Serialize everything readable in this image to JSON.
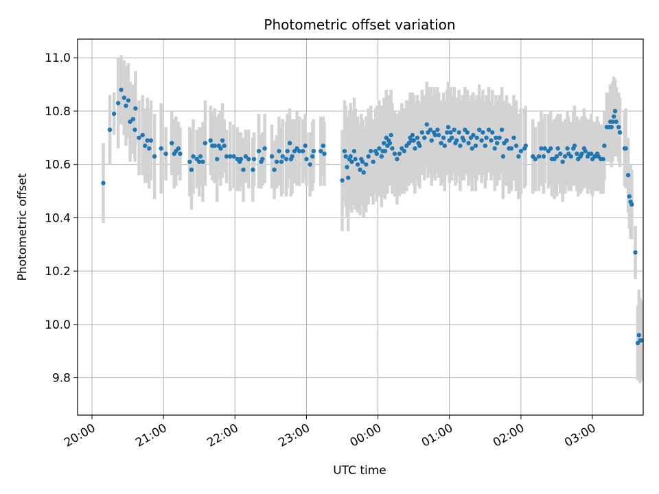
{
  "chart_data": {
    "type": "scatter",
    "title": "Photometric offset variation",
    "xlabel": "UTC time",
    "ylabel": "Photometric offset",
    "x_ticks": [
      "20:00",
      "21:00",
      "22:00",
      "23:00",
      "00:00",
      "01:00",
      "02:00",
      "03:00"
    ],
    "y_ticks": [
      "9.8",
      "10.0",
      "10.2",
      "10.4",
      "10.6",
      "10.8",
      "11.0"
    ],
    "xlim": [
      "19:52",
      "03:52"
    ],
    "ylim": [
      9.66,
      11.07
    ],
    "grid": true,
    "legend": "none",
    "colors": {
      "marker": "#1f77b4",
      "errorbar": "#d3d3d3",
      "grid": "#b0b0b0"
    },
    "series": [
      {
        "x_unit": "minutes after 20:00 UTC",
        "points": [
          [
            9.5,
            10.53,
            0.15
          ],
          [
            15,
            10.73,
            0.13
          ],
          [
            18.5,
            10.79,
            0.08
          ],
          [
            22,
            10.83,
            0.17
          ],
          [
            24.5,
            10.88,
            0.13
          ],
          [
            27,
            10.85,
            0.14
          ],
          [
            28.5,
            10.82,
            0.15
          ],
          [
            30.5,
            10.84,
            0.14
          ],
          [
            32,
            10.76,
            0.15
          ],
          [
            34.5,
            10.77,
            0.13
          ],
          [
            36.5,
            10.81,
            0.14
          ],
          [
            36,
            10.73,
            0.12
          ],
          [
            39.5,
            10.7,
            0.14
          ],
          [
            42.5,
            10.71,
            0.15
          ],
          [
            44.5,
            10.67,
            0.14
          ],
          [
            46.5,
            10.69,
            0.16
          ],
          [
            48,
            10.66,
            0.15
          ],
          [
            49.5,
            10.69,
            0.15
          ],
          [
            52.5,
            10.63,
            0.16
          ],
          [
            58,
            10.66,
            0.17
          ],
          [
            62,
            10.64,
            0.1
          ],
          [
            67,
            10.68,
            0.12
          ],
          [
            69,
            10.64,
            0.13
          ],
          [
            70.5,
            10.65,
            0.13
          ],
          [
            72.5,
            10.66,
            0.1
          ],
          [
            74,
            10.64,
            0.1
          ],
          [
            82,
            10.61,
            0.13
          ],
          [
            83.5,
            10.58,
            0.15
          ],
          [
            85,
            10.63,
            0.14
          ],
          [
            88,
            10.62,
            0.11
          ],
          [
            90,
            10.61,
            0.13
          ],
          [
            91,
            10.63,
            0.11
          ],
          [
            93,
            10.61,
            0.15
          ],
          [
            95,
            10.68,
            0.16
          ],
          [
            99.5,
            10.69,
            0.13
          ],
          [
            101,
            10.67,
            0.13
          ],
          [
            103,
            10.67,
            0.14
          ],
          [
            105,
            10.62,
            0.16
          ],
          [
            106.5,
            10.67,
            0.12
          ],
          [
            108,
            10.66,
            0.14
          ],
          [
            109.5,
            10.69,
            0.14
          ],
          [
            111,
            10.67,
            0.1
          ],
          [
            113,
            10.63,
            0.1
          ],
          [
            116,
            10.63,
            0.13
          ],
          [
            119,
            10.63,
            0.12
          ],
          [
            122,
            10.62,
            0.12
          ],
          [
            124,
            10.61,
            0.11
          ],
          [
            125,
            10.62,
            0.1
          ],
          [
            127,
            10.58,
            0.12
          ],
          [
            129,
            10.63,
            0.1
          ],
          [
            131.5,
            10.62,
            0.11
          ],
          [
            135,
            10.58,
            0.12
          ],
          [
            136,
            10.62,
            0.1
          ],
          [
            140,
            10.65,
            0.14
          ],
          [
            142,
            10.61,
            0.1
          ],
          [
            143,
            10.62,
            0.1
          ],
          [
            145,
            10.66,
            0.13
          ],
          [
            151,
            10.63,
            0.12
          ],
          [
            153,
            10.58,
            0.11
          ],
          [
            155,
            10.61,
            0.1
          ],
          [
            157,
            10.65,
            0.13
          ],
          [
            159,
            10.61,
            0.13
          ],
          [
            160,
            10.63,
            0.14
          ],
          [
            163,
            10.62,
            0.14
          ],
          [
            164,
            10.65,
            0.14
          ],
          [
            166,
            10.68,
            0.13
          ],
          [
            167,
            10.62,
            0.14
          ],
          [
            168,
            10.63,
            0.14
          ],
          [
            170,
            10.65,
            0.12
          ],
          [
            172,
            10.66,
            0.14
          ],
          [
            174,
            10.65,
            0.13
          ],
          [
            177,
            10.65,
            0.12
          ],
          [
            179,
            10.67,
            0.12
          ],
          [
            180,
            10.62,
            0.1
          ],
          [
            183,
            10.6,
            0.12
          ],
          [
            185,
            10.63,
            0.13
          ],
          [
            186,
            10.65,
            0.12
          ],
          [
            192,
            10.65,
            0.13
          ],
          [
            194,
            10.67,
            0.11
          ],
          [
            195,
            10.64,
            0.12
          ],
          [
            210,
            10.54,
            0.19
          ],
          [
            212,
            10.65,
            0.19
          ],
          [
            213,
            10.63,
            0.19
          ],
          [
            214,
            10.59,
            0.19
          ],
          [
            215,
            10.55,
            0.2
          ],
          [
            216,
            10.62,
            0.18
          ],
          [
            217,
            10.63,
            0.2
          ],
          [
            218,
            10.61,
            0.19
          ],
          [
            220,
            10.65,
            0.2
          ],
          [
            221,
            10.62,
            0.19
          ],
          [
            223,
            10.6,
            0.18
          ],
          [
            225,
            10.58,
            0.17
          ],
          [
            226,
            10.62,
            0.17
          ],
          [
            227,
            10.61,
            0.16
          ],
          [
            228,
            10.57,
            0.17
          ],
          [
            230,
            10.6,
            0.18
          ],
          [
            232,
            10.63,
            0.18
          ],
          [
            234,
            10.65,
            0.17
          ],
          [
            236,
            10.61,
            0.16
          ],
          [
            238,
            10.65,
            0.16
          ],
          [
            239,
            10.64,
            0.18
          ],
          [
            241,
            10.66,
            0.18
          ],
          [
            243,
            10.63,
            0.19
          ],
          [
            244,
            10.65,
            0.17
          ],
          [
            245,
            10.68,
            0.17
          ],
          [
            246,
            10.65,
            0.18
          ],
          [
            247,
            10.7,
            0.18
          ],
          [
            248,
            10.67,
            0.18
          ],
          [
            249,
            10.69,
            0.17
          ],
          [
            250,
            10.68,
            0.16
          ],
          [
            251,
            10.71,
            0.17
          ],
          [
            252,
            10.66,
            0.17
          ],
          [
            254,
            10.64,
            0.16
          ],
          [
            256,
            10.62,
            0.17
          ],
          [
            258,
            10.64,
            0.16
          ],
          [
            260,
            10.66,
            0.17
          ],
          [
            262,
            10.65,
            0.16
          ],
          [
            264,
            10.67,
            0.17
          ],
          [
            266,
            10.68,
            0.16
          ],
          [
            267,
            10.7,
            0.17
          ],
          [
            268,
            10.69,
            0.16
          ],
          [
            269,
            10.71,
            0.16
          ],
          [
            270,
            10.69,
            0.17
          ],
          [
            271,
            10.66,
            0.17
          ],
          [
            273,
            10.7,
            0.16
          ],
          [
            274,
            10.68,
            0.16
          ],
          [
            275,
            10.67,
            0.16
          ],
          [
            277,
            10.72,
            0.16
          ],
          [
            279,
            10.7,
            0.16
          ],
          [
            281,
            10.75,
            0.16
          ],
          [
            282,
            10.72,
            0.17
          ],
          [
            284,
            10.73,
            0.16
          ],
          [
            285,
            10.69,
            0.17
          ],
          [
            287,
            10.72,
            0.17
          ],
          [
            288,
            10.71,
            0.17
          ],
          [
            290,
            10.73,
            0.16
          ],
          [
            291,
            10.71,
            0.16
          ],
          [
            293,
            10.68,
            0.16
          ],
          [
            295,
            10.7,
            0.17
          ],
          [
            296,
            10.67,
            0.17
          ],
          [
            298,
            10.72,
            0.16
          ],
          [
            299,
            10.74,
            0.17
          ],
          [
            300,
            10.69,
            0.16
          ],
          [
            301,
            10.72,
            0.17
          ],
          [
            302,
            10.7,
            0.16
          ],
          [
            304,
            10.73,
            0.16
          ],
          [
            305,
            10.68,
            0.16
          ],
          [
            306,
            10.69,
            0.16
          ],
          [
            308,
            10.72,
            0.16
          ],
          [
            309,
            10.67,
            0.17
          ],
          [
            311,
            10.7,
            0.16
          ],
          [
            312,
            10.69,
            0.15
          ],
          [
            313,
            10.73,
            0.16
          ],
          [
            315,
            10.72,
            0.16
          ],
          [
            316,
            10.68,
            0.16
          ],
          [
            318,
            10.7,
            0.16
          ],
          [
            319,
            10.66,
            0.16
          ],
          [
            320,
            10.71,
            0.16
          ],
          [
            322,
            10.67,
            0.17
          ],
          [
            323,
            10.7,
            0.16
          ],
          [
            325,
            10.73,
            0.17
          ],
          [
            327,
            10.69,
            0.16
          ],
          [
            328,
            10.72,
            0.16
          ],
          [
            330,
            10.67,
            0.16
          ],
          [
            331,
            10.7,
            0.16
          ],
          [
            333,
            10.73,
            0.16
          ],
          [
            335,
            10.69,
            0.15
          ],
          [
            336,
            10.72,
            0.16
          ],
          [
            338,
            10.66,
            0.16
          ],
          [
            339,
            10.7,
            0.16
          ],
          [
            340,
            10.68,
            0.16
          ],
          [
            342,
            10.7,
            0.16
          ],
          [
            344,
            10.73,
            0.16
          ],
          [
            345,
            10.63,
            0.16
          ],
          [
            346,
            10.68,
            0.16
          ],
          [
            348,
            10.69,
            0.17
          ],
          [
            350,
            10.66,
            0.17
          ],
          [
            352,
            10.66,
            0.16
          ],
          [
            354,
            10.7,
            0.16
          ],
          [
            356,
            10.67,
            0.17
          ],
          [
            358,
            10.63,
            0.16
          ],
          [
            360,
            10.65,
            0.16
          ],
          [
            363,
            10.66,
            0.15
          ],
          [
            364,
            10.67,
            0.15
          ],
          [
            370,
            10.63,
            0.14
          ],
          [
            372,
            10.62,
            0.12
          ],
          [
            375,
            10.63,
            0.13
          ],
          [
            377,
            10.66,
            0.14
          ],
          [
            379,
            10.63,
            0.14
          ],
          [
            380,
            10.66,
            0.13
          ],
          [
            383,
            10.65,
            0.14
          ],
          [
            385,
            10.66,
            0.14
          ],
          [
            386,
            10.62,
            0.14
          ],
          [
            388,
            10.62,
            0.15
          ],
          [
            390,
            10.63,
            0.15
          ],
          [
            391,
            10.66,
            0.13
          ],
          [
            393,
            10.64,
            0.15
          ],
          [
            395,
            10.61,
            0.15
          ],
          [
            397,
            10.63,
            0.14
          ],
          [
            399,
            10.66,
            0.14
          ],
          [
            400,
            10.64,
            0.14
          ],
          [
            402,
            10.63,
            0.13
          ],
          [
            404,
            10.66,
            0.14
          ],
          [
            405,
            10.67,
            0.15
          ],
          [
            407,
            10.64,
            0.14
          ],
          [
            408,
            10.62,
            0.14
          ],
          [
            410,
            10.63,
            0.14
          ],
          [
            411,
            10.64,
            0.14
          ],
          [
            413,
            10.66,
            0.15
          ],
          [
            414,
            10.65,
            0.13
          ],
          [
            416,
            10.63,
            0.14
          ],
          [
            417,
            10.64,
            0.13
          ],
          [
            419,
            10.64,
            0.15
          ],
          [
            420,
            10.62,
            0.14
          ],
          [
            422,
            10.63,
            0.13
          ],
          [
            424,
            10.64,
            0.14
          ],
          [
            425,
            10.63,
            0.13
          ],
          [
            427,
            10.62,
            0.13
          ],
          [
            429,
            10.62,
            0.13
          ],
          [
            430,
            10.67,
            0.13
          ],
          [
            432,
            10.74,
            0.13
          ],
          [
            434,
            10.74,
            0.13
          ],
          [
            435,
            10.76,
            0.14
          ],
          [
            436,
            10.74,
            0.15
          ],
          [
            437,
            10.76,
            0.15
          ],
          [
            438,
            10.78,
            0.15
          ],
          [
            439,
            10.8,
            0.12
          ],
          [
            440,
            10.76,
            0.13
          ],
          [
            442,
            10.74,
            0.13
          ],
          [
            443,
            10.72,
            0.13
          ],
          [
            447,
            10.66,
            0.14
          ],
          [
            448,
            10.66,
            0.15
          ],
          [
            450,
            10.56,
            0.14
          ],
          [
            451,
            10.48,
            0.12
          ],
          [
            452,
            10.46,
            0.14
          ],
          [
            453,
            10.45,
            0.13
          ],
          [
            456,
            10.27,
            0.1
          ],
          [
            458,
            9.93,
            0.14
          ],
          [
            459,
            9.96,
            0.17
          ],
          [
            460,
            9.94,
            0.16
          ],
          [
            461,
            9.94,
            0.15
          ]
        ]
      }
    ]
  }
}
